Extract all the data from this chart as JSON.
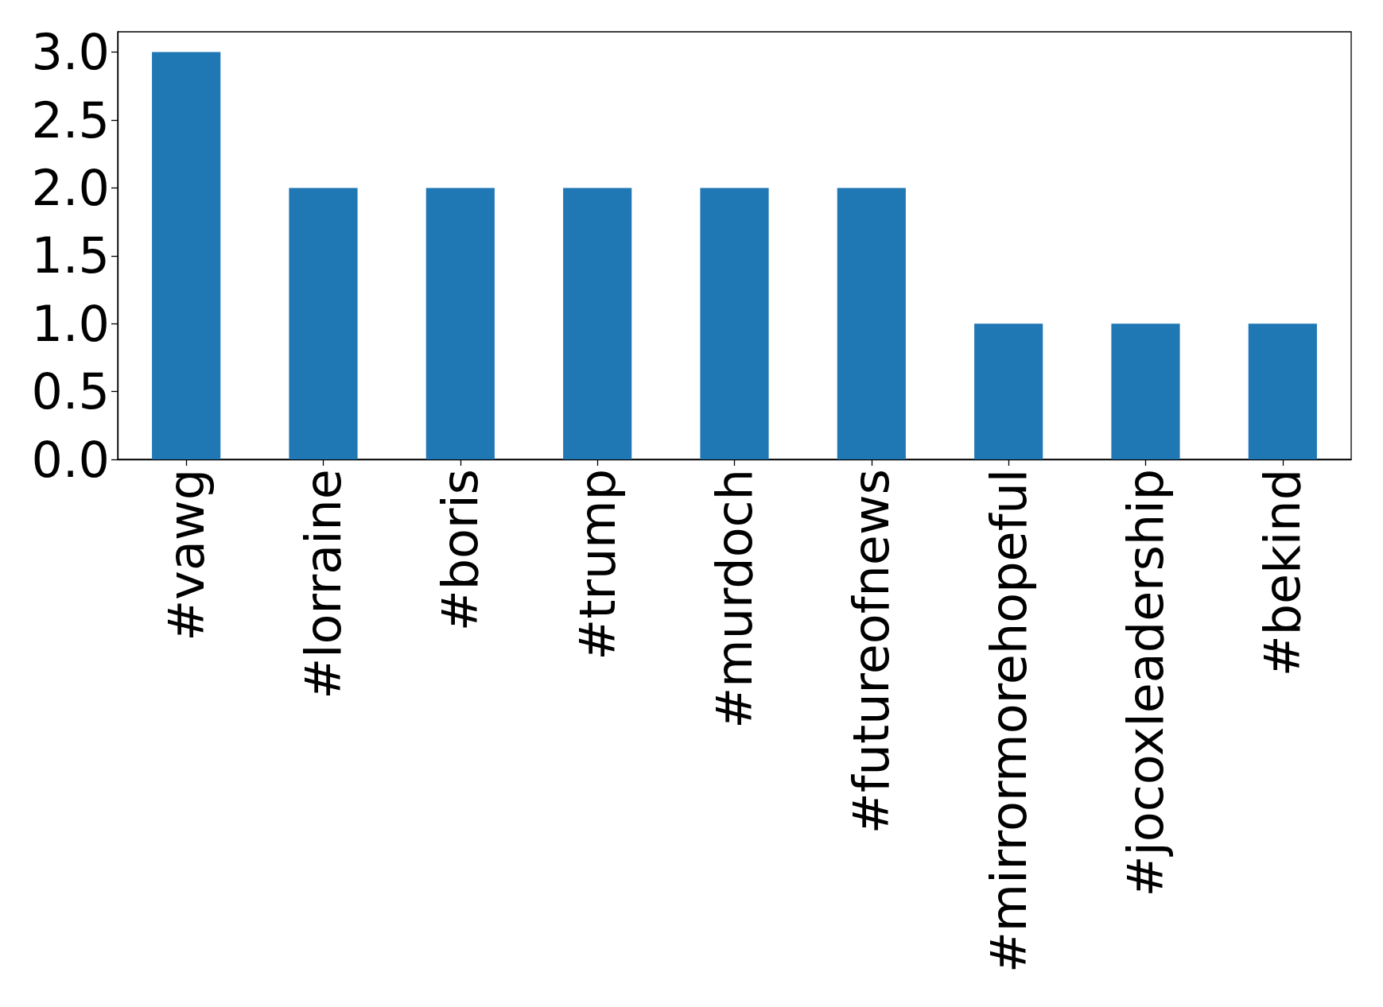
{
  "chart_data": {
    "type": "bar",
    "categories": [
      "#vawg",
      "#lorraine",
      "#boris",
      "#trump",
      "#murdoch",
      "#futureofnews",
      "#mirrormorehopeful",
      "#jocoxleadership",
      "#bekind"
    ],
    "values": [
      3,
      2,
      2,
      2,
      2,
      2,
      1,
      1,
      1
    ],
    "color": "#1f77b4",
    "ylim": [
      0,
      3.15
    ],
    "yticks": [
      {
        "value": 0,
        "label": "0.0"
      },
      {
        "value": 0.5,
        "label": "0.5"
      },
      {
        "value": 1,
        "label": "1.0"
      },
      {
        "value": 1.5,
        "label": "1.5"
      },
      {
        "value": 2,
        "label": "2.0"
      },
      {
        "value": 2.5,
        "label": "2.5"
      },
      {
        "value": 3,
        "label": "3.0"
      }
    ],
    "grid": false
  }
}
